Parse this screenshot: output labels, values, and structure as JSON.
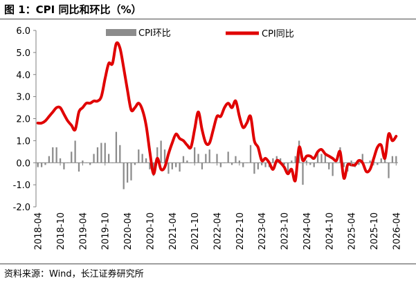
{
  "header": {
    "title": "图 1：CPI 同比和环比（%）"
  },
  "footer": {
    "source": "资料来源：Wind，长江证券研究所"
  },
  "colors": {
    "line": "#e00000",
    "bar": "#8c8c8c"
  },
  "chart_data": {
    "type": "bar+line",
    "ylim": [
      -2.0,
      6.0
    ],
    "yticks": [
      "6.0",
      "5.0",
      "4.0",
      "3.0",
      "2.0",
      "1.0",
      "0.0",
      "-1.0",
      "-2.0"
    ],
    "xtick_labels": [
      "2018-04",
      "2018-10",
      "2019-04",
      "2019-10",
      "2020-04",
      "2020-10",
      "2021-04",
      "2021-10",
      "2022-04",
      "2022-10",
      "2023-04",
      "2023-10",
      "2024-04",
      "2024-10",
      "2025-04",
      "2025-10",
      "2026-04"
    ],
    "legend": {
      "position": "top",
      "bar_label": "CPI环比",
      "line_label": "CPI同比"
    },
    "months": [
      "2018-04",
      "2018-05",
      "2018-06",
      "2018-07",
      "2018-08",
      "2018-09",
      "2018-10",
      "2018-11",
      "2018-12",
      "2019-01",
      "2019-02",
      "2019-03",
      "2019-04",
      "2019-05",
      "2019-06",
      "2019-07",
      "2019-08",
      "2019-09",
      "2019-10",
      "2019-11",
      "2019-12",
      "2020-01",
      "2020-02",
      "2020-03",
      "2020-04",
      "2020-05",
      "2020-06",
      "2020-07",
      "2020-08",
      "2020-09",
      "2020-10",
      "2020-11",
      "2020-12",
      "2021-01",
      "2021-02",
      "2021-03",
      "2021-04",
      "2021-05",
      "2021-06",
      "2021-07",
      "2021-08",
      "2021-09",
      "2021-10",
      "2021-11",
      "2021-12",
      "2022-01",
      "2022-02",
      "2022-03",
      "2022-04",
      "2022-05",
      "2022-06",
      "2022-07",
      "2022-08",
      "2022-09",
      "2022-10",
      "2022-11",
      "2022-12",
      "2023-01",
      "2023-02",
      "2023-03",
      "2023-04",
      "2023-05",
      "2023-06",
      "2023-07",
      "2023-08",
      "2023-09",
      "2023-10",
      "2023-11",
      "2023-12",
      "2024-01",
      "2024-02",
      "2024-03",
      "2024-04",
      "2024-05",
      "2024-06",
      "2024-07",
      "2024-08",
      "2024-09",
      "2024-10",
      "2024-11",
      "2024-12",
      "2025-01",
      "2025-02",
      "2025-03",
      "2025-04",
      "2025-05",
      "2025-06",
      "2025-07",
      "2025-08",
      "2025-09",
      "2025-10",
      "2025-11",
      "2025-12",
      "2026-01",
      "2026-02",
      "2026-03",
      "2026-04"
    ],
    "series": [
      {
        "name": "CPI环比",
        "type": "bar",
        "values": [
          -0.2,
          -0.2,
          -0.1,
          0.3,
          0.7,
          0.7,
          0.2,
          -0.3,
          0.0,
          0.5,
          1.0,
          -0.4,
          0.1,
          0.0,
          -0.1,
          0.4,
          0.7,
          0.9,
          0.9,
          0.4,
          0.0,
          1.4,
          0.8,
          -1.2,
          -0.9,
          -0.8,
          -0.1,
          0.6,
          0.4,
          0.2,
          -0.3,
          -0.6,
          0.7,
          1.0,
          0.6,
          -0.5,
          -0.3,
          -0.2,
          -0.4,
          0.3,
          0.1,
          0.0,
          0.7,
          0.4,
          -0.3,
          0.4,
          0.6,
          0.0,
          0.4,
          -0.2,
          0.0,
          0.5,
          -0.1,
          0.3,
          0.1,
          -0.2,
          0.0,
          0.8,
          -0.5,
          -0.3,
          -0.1,
          -0.2,
          -0.2,
          0.2,
          0.3,
          0.2,
          -0.1,
          -0.5,
          0.1,
          0.3,
          1.0,
          -1.0,
          0.1,
          -0.1,
          -0.2,
          0.5,
          0.4,
          0.4,
          -0.3,
          -0.6,
          0.0,
          0.7,
          -0.2,
          -0.4,
          0.1,
          -0.2,
          -0.1,
          0.4,
          0.0,
          0.1,
          0.2,
          -0.1,
          0.2,
          0.4,
          -0.7,
          0.3,
          0.3
        ]
      },
      {
        "name": "CPI同比",
        "type": "line",
        "values": [
          1.8,
          1.8,
          1.9,
          2.1,
          2.3,
          2.5,
          2.5,
          2.2,
          1.9,
          1.7,
          1.5,
          2.3,
          2.5,
          2.7,
          2.7,
          2.8,
          2.8,
          3.0,
          3.8,
          4.5,
          4.5,
          5.4,
          5.2,
          4.3,
          3.3,
          2.4,
          2.5,
          2.7,
          2.4,
          1.7,
          0.5,
          -0.5,
          0.2,
          -0.3,
          -0.2,
          0.4,
          0.9,
          1.3,
          1.1,
          1.0,
          0.8,
          0.7,
          1.5,
          2.3,
          1.5,
          0.9,
          0.9,
          1.5,
          2.1,
          2.1,
          2.5,
          2.7,
          2.5,
          2.8,
          2.1,
          1.6,
          1.8,
          2.1,
          1.0,
          0.7,
          0.1,
          0.2,
          0.0,
          -0.3,
          0.1,
          0.0,
          -0.2,
          -0.5,
          -0.3,
          -0.8,
          0.7,
          0.1,
          0.3,
          0.3,
          0.2,
          0.5,
          0.6,
          0.4,
          0.3,
          0.2,
          0.1,
          0.5,
          -0.7,
          -0.1,
          -0.1,
          -0.1,
          0.1,
          0.0,
          -0.4,
          -0.3,
          0.2,
          0.7,
          0.8,
          0.2,
          1.3,
          1.0,
          1.2
        ]
      }
    ]
  }
}
